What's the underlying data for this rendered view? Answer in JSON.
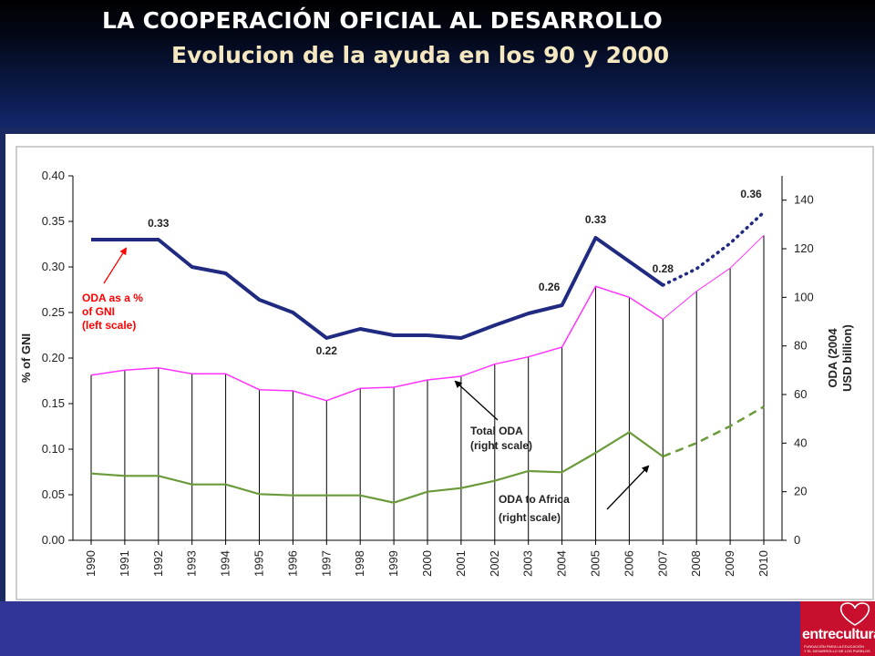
{
  "header": {
    "title": "LA COOPERACIÓN OFICIAL AL DESARROLLO",
    "subtitle": "Evolucion de la ayuda en los 90 y 2000"
  },
  "logo": {
    "name": "entreculturas",
    "tagline_1": "FUNDACIÓN PARA LA EDUCACIÓN",
    "tagline_2": "Y EL DESARROLLO DE LOS PUEBLOS"
  },
  "colors": {
    "oda_gni": "#1f2a80",
    "total_oda": "#ff33ff",
    "africa": "#6a9a3a",
    "annotation_red": "#ff0000"
  },
  "chart_data": {
    "type": "line",
    "x": [
      "1990",
      "1991",
      "1992",
      "1993",
      "1994",
      "1995",
      "1996",
      "1997",
      "1998",
      "1999",
      "2000",
      "2001",
      "2002",
      "2003",
      "2004",
      "2005",
      "2006",
      "2007",
      "2008",
      "2009",
      "2010"
    ],
    "ylabel": "% of GNI",
    "y2label_1": "ODA (2004",
    "y2label_2": "USD billion)",
    "ylim": [
      0,
      0.4
    ],
    "y2lim": [
      0,
      150
    ],
    "yticks": [
      "0.00",
      "0.05",
      "0.10",
      "0.15",
      "0.20",
      "0.25",
      "0.30",
      "0.35",
      "0.40"
    ],
    "y2ticks": [
      "0",
      "20",
      "40",
      "60",
      "80",
      "100",
      "120",
      "140"
    ],
    "grid": "vertical drop lines from total ODA at each year",
    "series": [
      {
        "name": "ODA as a % of GNI (left scale)",
        "axis": "left",
        "values": [
          0.33,
          0.33,
          0.33,
          0.3,
          0.293,
          0.264,
          0.25,
          0.222,
          0.232,
          0.225,
          0.225,
          0.222,
          0.236,
          0.249,
          0.258,
          0.332,
          0.306,
          0.28,
          0.298,
          0.326,
          0.36
        ],
        "projected_from": "2007"
      },
      {
        "name": "Total ODA (right scale)",
        "axis": "right",
        "values": [
          68,
          70,
          71,
          68.5,
          68.5,
          62,
          61.5,
          57.5,
          62.5,
          63,
          66,
          67.5,
          72.5,
          75.5,
          79.5,
          104.5,
          100,
          91,
          102.5,
          112,
          125.5
        ],
        "projected_from": "2007"
      },
      {
        "name": "ODA to Africa (right scale)",
        "axis": "right",
        "values": [
          27.5,
          26.5,
          26.5,
          23,
          23,
          19,
          18.5,
          18.5,
          18.5,
          15.5,
          20,
          21.5,
          24.5,
          28.5,
          28,
          36,
          44.5,
          34.5,
          40,
          47,
          55
        ],
        "projected_from": "2007"
      }
    ],
    "annotations": {
      "value_labels": [
        {
          "x": "1992",
          "text": "0.33"
        },
        {
          "x": "1997",
          "text": "0.22"
        },
        {
          "x": "2004",
          "text": "0.26"
        },
        {
          "x": "2005",
          "text": "0.33"
        },
        {
          "x": "2007",
          "text": "0.28"
        },
        {
          "x": "2010",
          "text": "0.36"
        }
      ],
      "oda_gni_label": [
        "ODA as a %",
        "of GNI",
        "(left scale)"
      ],
      "total_oda_label": [
        "Total ODA",
        "(right scale)"
      ],
      "africa_label": [
        "ODA to Africa",
        "(right scale)"
      ]
    }
  }
}
